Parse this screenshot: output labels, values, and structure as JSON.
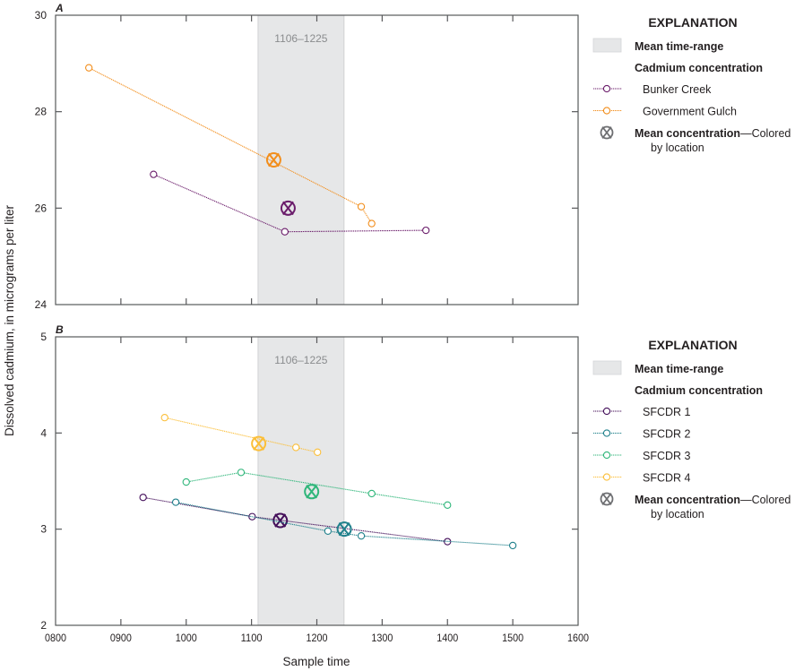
{
  "y_axis_label": "Dissolved cadmium, in micrograms per liter",
  "x_axis_label": "Sample time",
  "chart_data": [
    {
      "type": "line",
      "panel_label": "A",
      "title": "",
      "xlabel": "Sample time",
      "ylabel": "Dissolved cadmium, in micrograms per liter",
      "xlim": [
        8,
        16
      ],
      "ylim": [
        24,
        30
      ],
      "x_ticks": [
        8,
        9,
        10,
        11,
        12,
        13,
        14,
        15,
        16
      ],
      "x_tick_labels": [
        "0800",
        "0900",
        "1000",
        "1100",
        "1200",
        "1300",
        "1400",
        "1500",
        "1600"
      ],
      "y_ticks": [
        24,
        26,
        28,
        30
      ],
      "y_tick_labels": [
        "24",
        "26",
        "28",
        "30"
      ],
      "band": {
        "start": 11.1,
        "end": 12.417,
        "label": "1106–1225",
        "color": "#e6e7e8"
      },
      "series": [
        {
          "name": "Bunker Creek",
          "color": "#6b1d6b",
          "x": [
            9.5,
            11.51,
            13.67
          ],
          "y": [
            26.7,
            25.51,
            25.54
          ],
          "mean": {
            "x": 11.56,
            "y": 26.0
          }
        },
        {
          "name": "Government Gulch",
          "color": "#f28e1c",
          "x": [
            8.51,
            12.68,
            12.84
          ],
          "y": [
            28.91,
            26.03,
            25.68
          ],
          "mean": {
            "x": 11.34,
            "y": 27.0
          }
        }
      ],
      "legend": {
        "title": "EXPLANATION",
        "band_label": "Mean time-range",
        "group_label": "Cadmium concentration",
        "mean_label": "Mean concentration",
        "mean_suffix": "—Colored",
        "mean_suffix2": "by location",
        "placement": "right"
      }
    },
    {
      "type": "line",
      "panel_label": "B",
      "title": "",
      "xlabel": "Sample time",
      "ylabel": "Dissolved cadmium, in micrograms per liter",
      "xlim": [
        8,
        16
      ],
      "ylim": [
        2,
        5
      ],
      "x_ticks": [
        8,
        9,
        10,
        11,
        12,
        13,
        14,
        15,
        16
      ],
      "x_tick_labels": [
        "0800",
        "0900",
        "1000",
        "1100",
        "1200",
        "1300",
        "1400",
        "1500",
        "1600"
      ],
      "y_ticks": [
        2,
        3,
        4,
        5
      ],
      "y_tick_labels": [
        "2",
        "3",
        "4",
        "5"
      ],
      "band": {
        "start": 11.1,
        "end": 12.417,
        "label": "1106–1225",
        "color": "#e6e7e8"
      },
      "series": [
        {
          "name": "SFCDR 1",
          "color": "#440f5a",
          "x": [
            9.34,
            11.01,
            14.0
          ],
          "y": [
            3.33,
            3.13,
            2.87
          ],
          "mean": {
            "x": 11.44,
            "y": 3.09
          }
        },
        {
          "name": "SFCDR 2",
          "color": "#21818c",
          "x": [
            9.84,
            12.17,
            12.68,
            15.0
          ],
          "y": [
            3.28,
            2.98,
            2.93,
            2.83
          ],
          "mean": {
            "x": 12.42,
            "y": 3.0
          }
        },
        {
          "name": "SFCDR 3",
          "color": "#2fb67a",
          "x": [
            10.0,
            10.84,
            12.84,
            14.0
          ],
          "y": [
            3.49,
            3.59,
            3.37,
            3.25
          ],
          "mean": {
            "x": 11.92,
            "y": 3.39
          }
        },
        {
          "name": "SFCDR 4",
          "color": "#fbbf3a",
          "x": [
            9.67,
            11.68,
            12.01
          ],
          "y": [
            4.16,
            3.85,
            3.8
          ],
          "mean": {
            "x": 11.11,
            "y": 3.89
          }
        }
      ],
      "legend": {
        "title": "EXPLANATION",
        "band_label": "Mean time-range",
        "group_label": "Cadmium concentration",
        "mean_label": "Mean concentration",
        "mean_suffix": "—Colored",
        "mean_suffix2": "by location",
        "placement": "right"
      }
    }
  ]
}
